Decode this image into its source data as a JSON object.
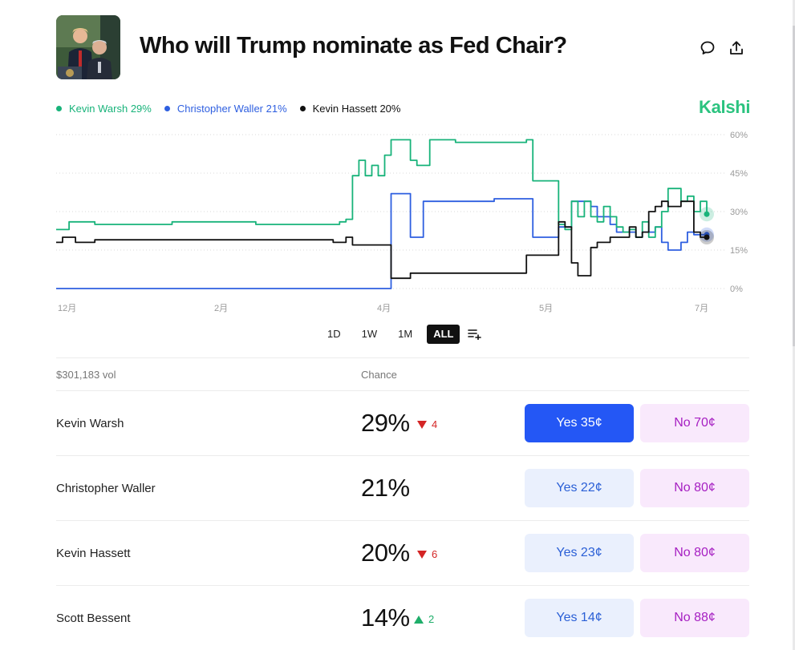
{
  "header": {
    "title": "Who will Trump nominate as Fed Chair?"
  },
  "legend": [
    {
      "label": "Kevin Warsh 29%",
      "color": "#18b37a"
    },
    {
      "label": "Christopher Waller 21%",
      "color": "#2e5fe0"
    },
    {
      "label": "Kevin Hassett 20%",
      "color": "#111111"
    }
  ],
  "brand": "Kalshi",
  "chart_data": {
    "type": "line",
    "x_tick_labels": [
      "12月",
      "2月",
      "4月",
      "5月",
      "7月"
    ],
    "y_tick_labels": [
      "60%",
      "45%",
      "30%",
      "15%",
      "0%"
    ],
    "ylim": [
      0,
      60
    ],
    "grid": true,
    "series": [
      {
        "name": "Kevin Warsh",
        "color": "#18b37a",
        "values": [
          23,
          23,
          26,
          26,
          26,
          26,
          25,
          25,
          25,
          25,
          25,
          25,
          25,
          25,
          25,
          25,
          25,
          25,
          26,
          26,
          26,
          26,
          26,
          26,
          26,
          26,
          26,
          26,
          26,
          26,
          26,
          25,
          25,
          25,
          25,
          25,
          25,
          25,
          25,
          25,
          25,
          25,
          25,
          25,
          26,
          27,
          44,
          50,
          44,
          48,
          44,
          52,
          58,
          58,
          58,
          50,
          48,
          48,
          58,
          58,
          58,
          58,
          57,
          57,
          57,
          57,
          57,
          57,
          57,
          57,
          57,
          57,
          57,
          58,
          42,
          42,
          42,
          42,
          25,
          23,
          34,
          28,
          34,
          28,
          26,
          32,
          28,
          24,
          22,
          23,
          20,
          26,
          20,
          24,
          30,
          39,
          39,
          34,
          36,
          30,
          34,
          29
        ]
      },
      {
        "name": "Christopher Waller",
        "color": "#2e5fe0",
        "values": [
          0,
          0,
          0,
          0,
          0,
          0,
          0,
          0,
          0,
          0,
          0,
          0,
          0,
          0,
          0,
          0,
          0,
          0,
          0,
          0,
          0,
          0,
          0,
          0,
          0,
          0,
          0,
          0,
          0,
          0,
          0,
          0,
          0,
          0,
          0,
          0,
          0,
          0,
          0,
          0,
          0,
          0,
          0,
          0,
          0,
          0,
          0,
          0,
          0,
          0,
          0,
          0,
          37,
          37,
          37,
          20,
          20,
          34,
          34,
          34,
          34,
          34,
          34,
          34,
          34,
          34,
          34,
          34,
          35,
          35,
          35,
          35,
          35,
          35,
          20,
          20,
          20,
          20,
          24,
          24,
          34,
          34,
          34,
          32,
          28,
          28,
          25,
          22,
          22,
          22,
          20,
          22,
          22,
          24,
          18,
          15,
          15,
          18,
          22,
          21,
          21,
          21
        ]
      },
      {
        "name": "Kevin Hassett",
        "color": "#111111",
        "values": [
          18,
          20,
          20,
          18,
          18,
          18,
          19,
          19,
          19,
          19,
          19,
          19,
          19,
          19,
          19,
          19,
          19,
          19,
          19,
          19,
          19,
          19,
          19,
          19,
          19,
          19,
          19,
          19,
          19,
          19,
          19,
          19,
          19,
          19,
          19,
          19,
          19,
          19,
          19,
          19,
          19,
          19,
          19,
          18,
          18,
          20,
          17,
          17,
          17,
          17,
          17,
          17,
          4,
          4,
          4,
          6,
          6,
          6,
          6,
          6,
          6,
          6,
          6,
          6,
          6,
          6,
          6,
          6,
          6,
          6,
          6,
          6,
          6,
          13,
          13,
          13,
          13,
          13,
          26,
          24,
          10,
          5,
          5,
          16,
          18,
          18,
          20,
          20,
          20,
          24,
          20,
          22,
          30,
          32,
          34,
          32,
          32,
          34,
          34,
          22,
          20,
          20
        ]
      }
    ]
  },
  "ranges": {
    "items": [
      "1D",
      "1W",
      "1M",
      "ALL"
    ],
    "active": "ALL"
  },
  "table": {
    "volume": "$301,183 vol",
    "chance_header": "Chance",
    "rows": [
      {
        "name": "Kevin Warsh",
        "pct": "29%",
        "delta": "4",
        "dir": "down",
        "yes": "Yes 35¢",
        "no": "No 70¢"
      },
      {
        "name": "Christopher Waller",
        "pct": "21%",
        "delta": "",
        "dir": "",
        "yes": "Yes 22¢",
        "no": "No 80¢"
      },
      {
        "name": "Kevin Hassett",
        "pct": "20%",
        "delta": "6",
        "dir": "down",
        "yes": "Yes 23¢",
        "no": "No 80¢"
      },
      {
        "name": "Scott Bessent",
        "pct": "14%",
        "delta": "2",
        "dir": "up",
        "yes": "Yes 14¢",
        "no": "No 88¢"
      }
    ]
  }
}
